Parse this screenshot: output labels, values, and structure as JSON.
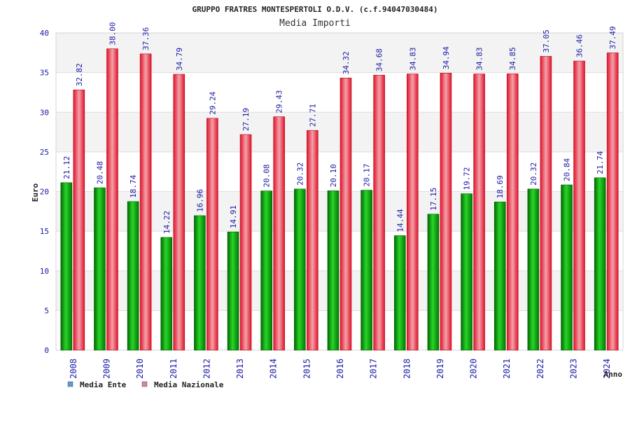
{
  "header": {
    "title": "GRUPPO FRATRES MONTESPERTOLI O.D.V. (c.f.94047030484)",
    "subtitle": "Media Importi"
  },
  "chart_data": {
    "type": "bar",
    "title": "GRUPPO FRATRES MONTESPERTOLI O.D.V. (c.f.94047030484)",
    "subtitle": "Media Importi",
    "xlabel": "Anno",
    "ylabel": "Euro",
    "ylim": [
      0,
      40
    ],
    "yticks": [
      0,
      5,
      10,
      15,
      20,
      25,
      30,
      35,
      40
    ],
    "grid": true,
    "legend_position": "bottom-left",
    "categories": [
      "2008",
      "2009",
      "2010",
      "2011",
      "2012",
      "2013",
      "2014",
      "2015",
      "2016",
      "2017",
      "2018",
      "2019",
      "2020",
      "2021",
      "2022",
      "2023",
      "2024"
    ],
    "series": [
      {
        "name": "Media Ente",
        "color": "#0a9a0a",
        "legend_color": "#5b9bd5",
        "values": [
          21.12,
          20.48,
          18.74,
          14.22,
          16.96,
          14.91,
          20.08,
          20.32,
          20.1,
          20.17,
          14.44,
          17.15,
          19.72,
          18.69,
          20.32,
          20.84,
          21.74
        ],
        "labels": [
          "21.12",
          "20.48",
          "18.74",
          "14.22",
          "16.96",
          "14.91",
          "20.08",
          "20.32",
          "20.10",
          "20.17",
          "14.44",
          "17.15",
          "19.72",
          "18.69",
          "20.32",
          "20.84",
          "21.74"
        ]
      },
      {
        "name": "Media Nazionale",
        "color": "#e0202a",
        "legend_color": "#d67fb0",
        "values": [
          32.82,
          38.0,
          37.36,
          34.79,
          29.24,
          27.19,
          29.43,
          27.71,
          34.32,
          34.68,
          34.83,
          34.94,
          34.83,
          34.85,
          37.05,
          36.46,
          37.49
        ],
        "labels": [
          "32.82",
          "38.00",
          "37.36",
          "34.79",
          "29.24",
          "27.19",
          "29.43",
          "27.71",
          "34.32",
          "34.68",
          "34.83",
          "34.94",
          "34.83",
          "34.85",
          "37.05",
          "36.46",
          "37.49"
        ]
      }
    ]
  }
}
